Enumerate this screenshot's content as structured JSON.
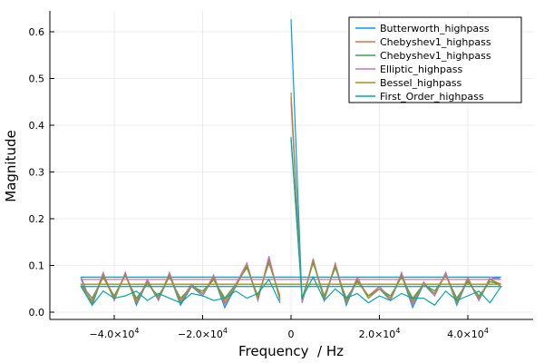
{
  "chart_data": {
    "type": "line",
    "title": "",
    "xlabel": "Frequency  / Hz",
    "ylabel": "Magnitude",
    "xlim": [
      -52000,
      52000
    ],
    "ylim": [
      -0.015,
      0.65
    ],
    "xticks": [
      {
        "v": -40000,
        "m": "−4.0×10",
        "e": "4"
      },
      {
        "v": -20000,
        "m": "−2.0×10",
        "e": "4"
      },
      {
        "v": 0,
        "m": "0",
        "e": ""
      },
      {
        "v": 20000,
        "m": "2.0×10",
        "e": "4"
      },
      {
        "v": 40000,
        "m": "4.0×10",
        "e": "4"
      }
    ],
    "yticks": [
      {
        "v": 0,
        "l": "0.0"
      },
      {
        "v": 0.1,
        "l": "0.1"
      },
      {
        "v": 0.2,
        "l": "0.2"
      },
      {
        "v": 0.3,
        "l": "0.3"
      },
      {
        "v": 0.4,
        "l": "0.4"
      },
      {
        "v": 0.5,
        "l": "0.5"
      },
      {
        "v": 0.6,
        "l": "0.6"
      }
    ],
    "grid": true,
    "legend_position": "top-right",
    "x": [
      0,
      2500,
      5000,
      7500,
      10000,
      12500,
      15000,
      17500,
      20000,
      22500,
      25000,
      27500,
      30000,
      32500,
      35000,
      37500,
      40000,
      42500,
      45000,
      47500,
      -47500,
      -45000,
      -42500,
      -40000,
      -37500,
      -35000,
      -32500,
      -30000,
      -27500,
      -25000,
      -22500,
      -20000,
      -17500,
      -15000,
      -12500,
      -10000,
      -7500,
      -5000,
      -2500
    ],
    "series": [
      {
        "name": "Butterworth_highpass",
        "color": "#009af9",
        "values": [
          0.627,
          0.02,
          0.11,
          0.025,
          0.1,
          0.015,
          0.07,
          0.03,
          0.05,
          0.025,
          0.08,
          0.01,
          0.06,
          0.035,
          0.085,
          0.015,
          0.07,
          0.025,
          0.07,
          0.075,
          0.075,
          0.015,
          0.08,
          0.025,
          0.085,
          0.015,
          0.065,
          0.025,
          0.08,
          0.015,
          0.055,
          0.035,
          0.075,
          0.01,
          0.055,
          0.1,
          0.025,
          0.115,
          0.025
        ]
      },
      {
        "name": "Chebyshev1_highpass",
        "color": "#e26f46",
        "values": [
          0.46,
          0.025,
          0.11,
          0.03,
          0.1,
          0.025,
          0.07,
          0.035,
          0.055,
          0.03,
          0.08,
          0.025,
          0.06,
          0.04,
          0.08,
          0.025,
          0.07,
          0.03,
          0.07,
          0.055,
          0.055,
          0.025,
          0.075,
          0.03,
          0.08,
          0.025,
          0.065,
          0.03,
          0.08,
          0.025,
          0.06,
          0.04,
          0.07,
          0.025,
          0.06,
          0.1,
          0.03,
          0.11,
          0.03
        ]
      },
      {
        "name": "Chebyshev1_highpass",
        "color": "#3da44d",
        "values": [
          0.37,
          0.03,
          0.105,
          0.035,
          0.095,
          0.03,
          0.065,
          0.035,
          0.05,
          0.035,
          0.075,
          0.03,
          0.06,
          0.045,
          0.08,
          0.03,
          0.065,
          0.035,
          0.065,
          0.06,
          0.06,
          0.03,
          0.075,
          0.035,
          0.08,
          0.03,
          0.06,
          0.035,
          0.075,
          0.03,
          0.055,
          0.045,
          0.07,
          0.03,
          0.06,
          0.095,
          0.035,
          0.105,
          0.035
        ]
      },
      {
        "name": "Elliptic_highpass",
        "color": "#c271d2",
        "values": [
          0.45,
          0.02,
          0.115,
          0.025,
          0.105,
          0.02,
          0.075,
          0.03,
          0.055,
          0.025,
          0.085,
          0.015,
          0.065,
          0.035,
          0.085,
          0.02,
          0.075,
          0.025,
          0.075,
          0.07,
          0.07,
          0.02,
          0.085,
          0.025,
          0.085,
          0.02,
          0.07,
          0.025,
          0.085,
          0.02,
          0.06,
          0.035,
          0.08,
          0.015,
          0.06,
          0.105,
          0.025,
          0.12,
          0.025
        ]
      },
      {
        "name": "Bessel_highpass",
        "color": "#ac8e18",
        "values": [
          0.47,
          0.025,
          0.11,
          0.03,
          0.1,
          0.02,
          0.07,
          0.03,
          0.05,
          0.03,
          0.08,
          0.02,
          0.06,
          0.04,
          0.08,
          0.02,
          0.07,
          0.03,
          0.07,
          0.06,
          0.06,
          0.02,
          0.08,
          0.03,
          0.08,
          0.02,
          0.065,
          0.03,
          0.08,
          0.02,
          0.055,
          0.04,
          0.075,
          0.02,
          0.055,
          0.1,
          0.03,
          0.11,
          0.03
        ]
      },
      {
        "name": "First_Order_highpass",
        "color": "#00a9ad",
        "values": [
          0.375,
          0.03,
          0.075,
          0.025,
          0.05,
          0.03,
          0.04,
          0.02,
          0.035,
          0.025,
          0.04,
          0.03,
          0.03,
          0.015,
          0.045,
          0.025,
          0.035,
          0.045,
          0.02,
          0.055,
          0.055,
          0.015,
          0.045,
          0.03,
          0.035,
          0.045,
          0.025,
          0.04,
          0.03,
          0.02,
          0.04,
          0.035,
          0.025,
          0.03,
          0.045,
          0.03,
          0.04,
          0.07,
          0.02
        ]
      }
    ]
  }
}
